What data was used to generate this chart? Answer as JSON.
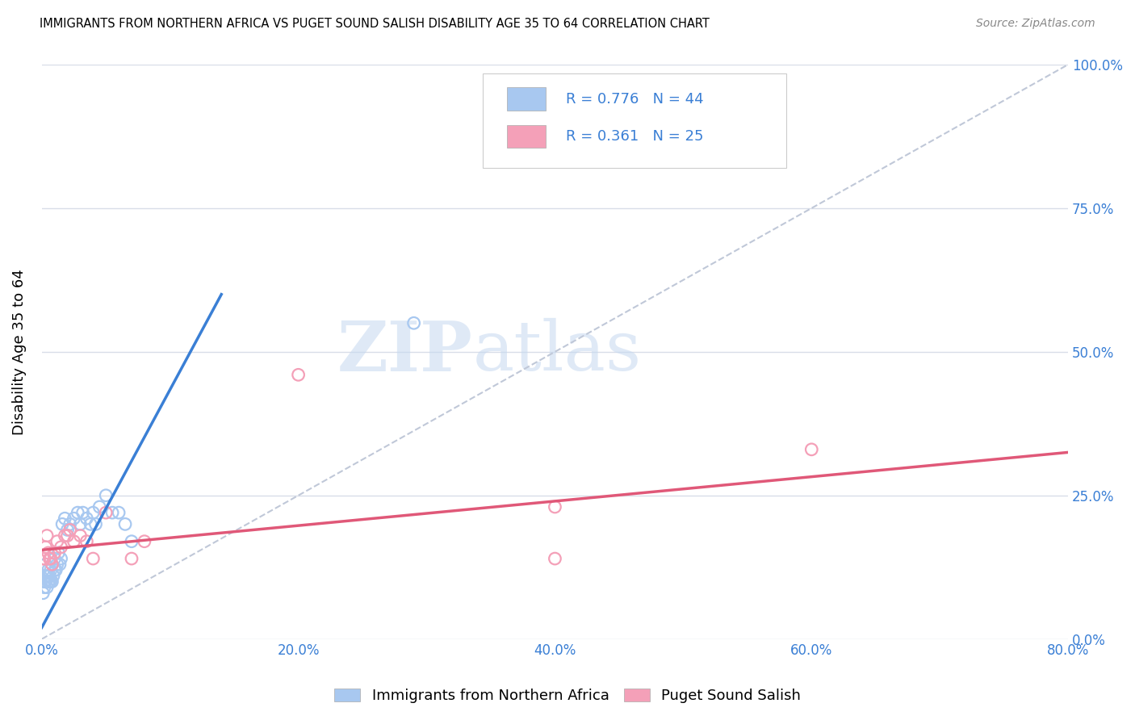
{
  "title": "IMMIGRANTS FROM NORTHERN AFRICA VS PUGET SOUND SALISH DISABILITY AGE 35 TO 64 CORRELATION CHART",
  "source": "Source: ZipAtlas.com",
  "ylabel": "Disability Age 35 to 64",
  "legend_label_blue": "Immigrants from Northern Africa",
  "legend_label_pink": "Puget Sound Salish",
  "R_blue": 0.776,
  "N_blue": 44,
  "R_pink": 0.361,
  "N_pink": 25,
  "xlim": [
    0.0,
    0.8
  ],
  "ylim": [
    0.0,
    1.0
  ],
  "xticks": [
    0.0,
    0.2,
    0.4,
    0.6,
    0.8
  ],
  "yticks": [
    0.0,
    0.25,
    0.5,
    0.75,
    1.0
  ],
  "color_blue": "#a8c8f0",
  "color_pink": "#f4a0b8",
  "color_blue_line": "#3a7fd5",
  "color_pink_line": "#e05878",
  "color_diag": "#c0c8d8",
  "color_axis_labels": "#3a7fd5",
  "blue_line_x0": 0.0,
  "blue_line_y0": 0.02,
  "blue_line_x1": 0.14,
  "blue_line_y1": 0.6,
  "pink_line_x0": 0.0,
  "pink_line_y0": 0.155,
  "pink_line_x1": 0.8,
  "pink_line_y1": 0.325,
  "blue_x": [
    0.001,
    0.002,
    0.002,
    0.003,
    0.003,
    0.003,
    0.004,
    0.004,
    0.005,
    0.005,
    0.005,
    0.006,
    0.006,
    0.007,
    0.007,
    0.008,
    0.008,
    0.009,
    0.01,
    0.01,
    0.011,
    0.012,
    0.013,
    0.014,
    0.015,
    0.016,
    0.018,
    0.02,
    0.022,
    0.025,
    0.028,
    0.03,
    0.032,
    0.035,
    0.038,
    0.04,
    0.042,
    0.045,
    0.05,
    0.055,
    0.06,
    0.065,
    0.07,
    0.29
  ],
  "blue_y": [
    0.08,
    0.09,
    0.1,
    0.1,
    0.11,
    0.13,
    0.09,
    0.11,
    0.1,
    0.11,
    0.12,
    0.1,
    0.11,
    0.1,
    0.12,
    0.1,
    0.13,
    0.11,
    0.12,
    0.14,
    0.12,
    0.13,
    0.15,
    0.13,
    0.14,
    0.2,
    0.21,
    0.19,
    0.2,
    0.21,
    0.22,
    0.2,
    0.22,
    0.21,
    0.2,
    0.22,
    0.2,
    0.23,
    0.25,
    0.22,
    0.22,
    0.2,
    0.17,
    0.55
  ],
  "pink_x": [
    0.001,
    0.002,
    0.003,
    0.004,
    0.005,
    0.006,
    0.007,
    0.008,
    0.01,
    0.012,
    0.015,
    0.018,
    0.02,
    0.022,
    0.025,
    0.03,
    0.035,
    0.04,
    0.05,
    0.07,
    0.08,
    0.2,
    0.4,
    0.4,
    0.6
  ],
  "pink_y": [
    0.14,
    0.14,
    0.16,
    0.18,
    0.15,
    0.14,
    0.14,
    0.13,
    0.15,
    0.17,
    0.16,
    0.18,
    0.18,
    0.19,
    0.17,
    0.18,
    0.17,
    0.14,
    0.22,
    0.14,
    0.17,
    0.46,
    0.14,
    0.23,
    0.33
  ],
  "watermark_zip": "ZIP",
  "watermark_atlas": "atlas",
  "background_color": "#ffffff",
  "grid_color": "#d8dde8"
}
